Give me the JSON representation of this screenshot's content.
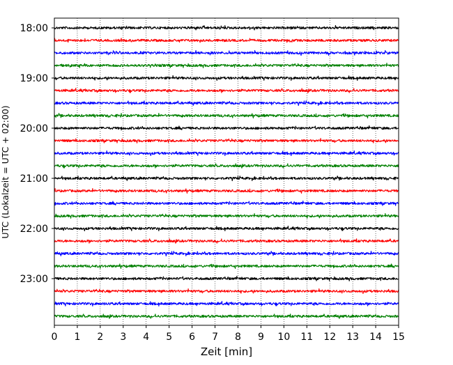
{
  "chart_data": {
    "type": "line",
    "xlabel": "Zeit  [min]",
    "ylabel": "UTC (Lokalzeit = UTC + 02:00)",
    "xlim": [
      0,
      15
    ],
    "x_ticks": [
      "0",
      "1",
      "2",
      "3",
      "4",
      "5",
      "6",
      "7",
      "8",
      "9",
      "10",
      "11",
      "12",
      "13",
      "14",
      "15"
    ],
    "y_tick_labels": [
      "18:00",
      "19:00",
      "20:00",
      "21:00",
      "22:00",
      "23:00"
    ],
    "grid": "vertical dotted lines at each minute",
    "trace_interval_minutes": 15,
    "trace_start": "18:00",
    "trace_count": 24,
    "trace_colors": [
      "#000000",
      "#ff0000",
      "#0000ff",
      "#008000"
    ],
    "trace_amplitude": "small noise, roughly uniform across all traces"
  }
}
